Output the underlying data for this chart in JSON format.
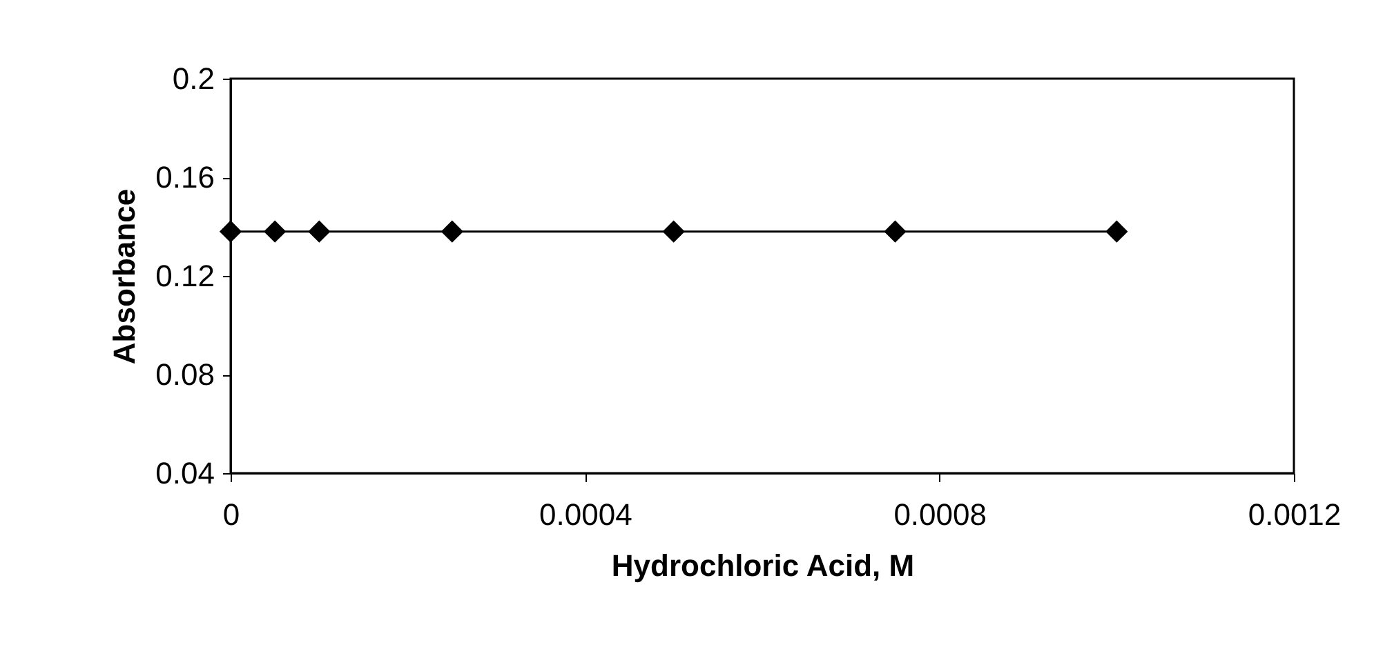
{
  "chart_data": {
    "type": "line",
    "xlabel": "Hydrochloric Acid, M",
    "ylabel": "Absorbance",
    "x": [
      0,
      5e-05,
      0.0001,
      0.00025,
      0.0005,
      0.00075,
      0.001
    ],
    "series": [
      {
        "color": "#000000",
        "values": [
          0.138,
          0.138,
          0.138,
          0.138,
          0.138,
          0.138,
          0.138
        ]
      }
    ],
    "xlim": [
      0,
      0.0012
    ],
    "xticks": [
      0,
      0.0004,
      0.0008,
      0.0012
    ],
    "ylim": [
      0.04,
      0.2
    ],
    "yticks": [
      0.04,
      0.08,
      0.12,
      0.16,
      0.2
    ],
    "grid": false,
    "legend": false,
    "marker": "diamond",
    "line_style": "solid"
  }
}
